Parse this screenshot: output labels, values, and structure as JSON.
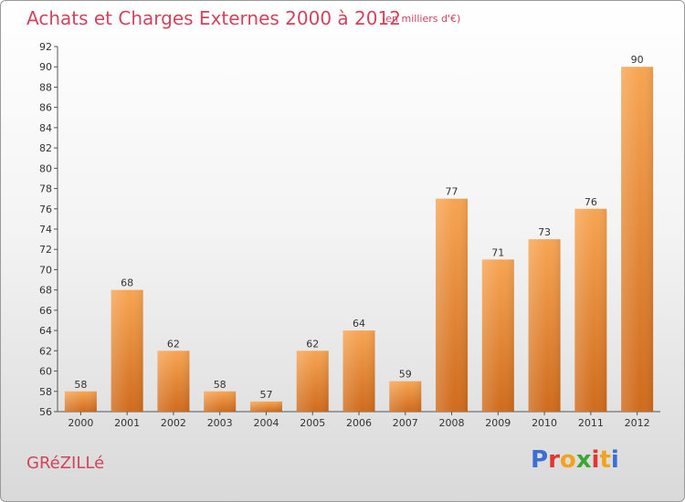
{
  "header": {
    "title": "Achats et Charges Externes 2000 à 2012",
    "subtitle": "(en milliers d'€)"
  },
  "footer": {
    "commune": "GRéZILLé",
    "logo": "Proxiti"
  },
  "colors": {
    "accent": "#d0445e",
    "bar_top": "#f7a553",
    "bar_bottom": "#cf6b1c",
    "logo_letters": [
      "#3b6fd1",
      "#e0382d",
      "#f2a31b",
      "#3aa635",
      "#e0382d",
      "#f2a31b",
      "#3b6fd1"
    ]
  },
  "chart_data": {
    "type": "bar",
    "title": "Achats et Charges Externes 2000 à 2012",
    "subtitle": "(en milliers d'€)",
    "categories": [
      "2000",
      "2001",
      "2002",
      "2003",
      "2004",
      "2005",
      "2006",
      "2007",
      "2008",
      "2009",
      "2010",
      "2011",
      "2012"
    ],
    "values": [
      58,
      68,
      62,
      58,
      57,
      62,
      64,
      59,
      77,
      71,
      73,
      76,
      90
    ],
    "xlabel": "",
    "ylabel": "",
    "ylim": [
      56,
      92
    ],
    "yticks": [
      56,
      58,
      60,
      62,
      64,
      66,
      68,
      70,
      72,
      74,
      76,
      78,
      80,
      82,
      84,
      86,
      88,
      90,
      92
    ],
    "grid": false,
    "legend": "none"
  }
}
